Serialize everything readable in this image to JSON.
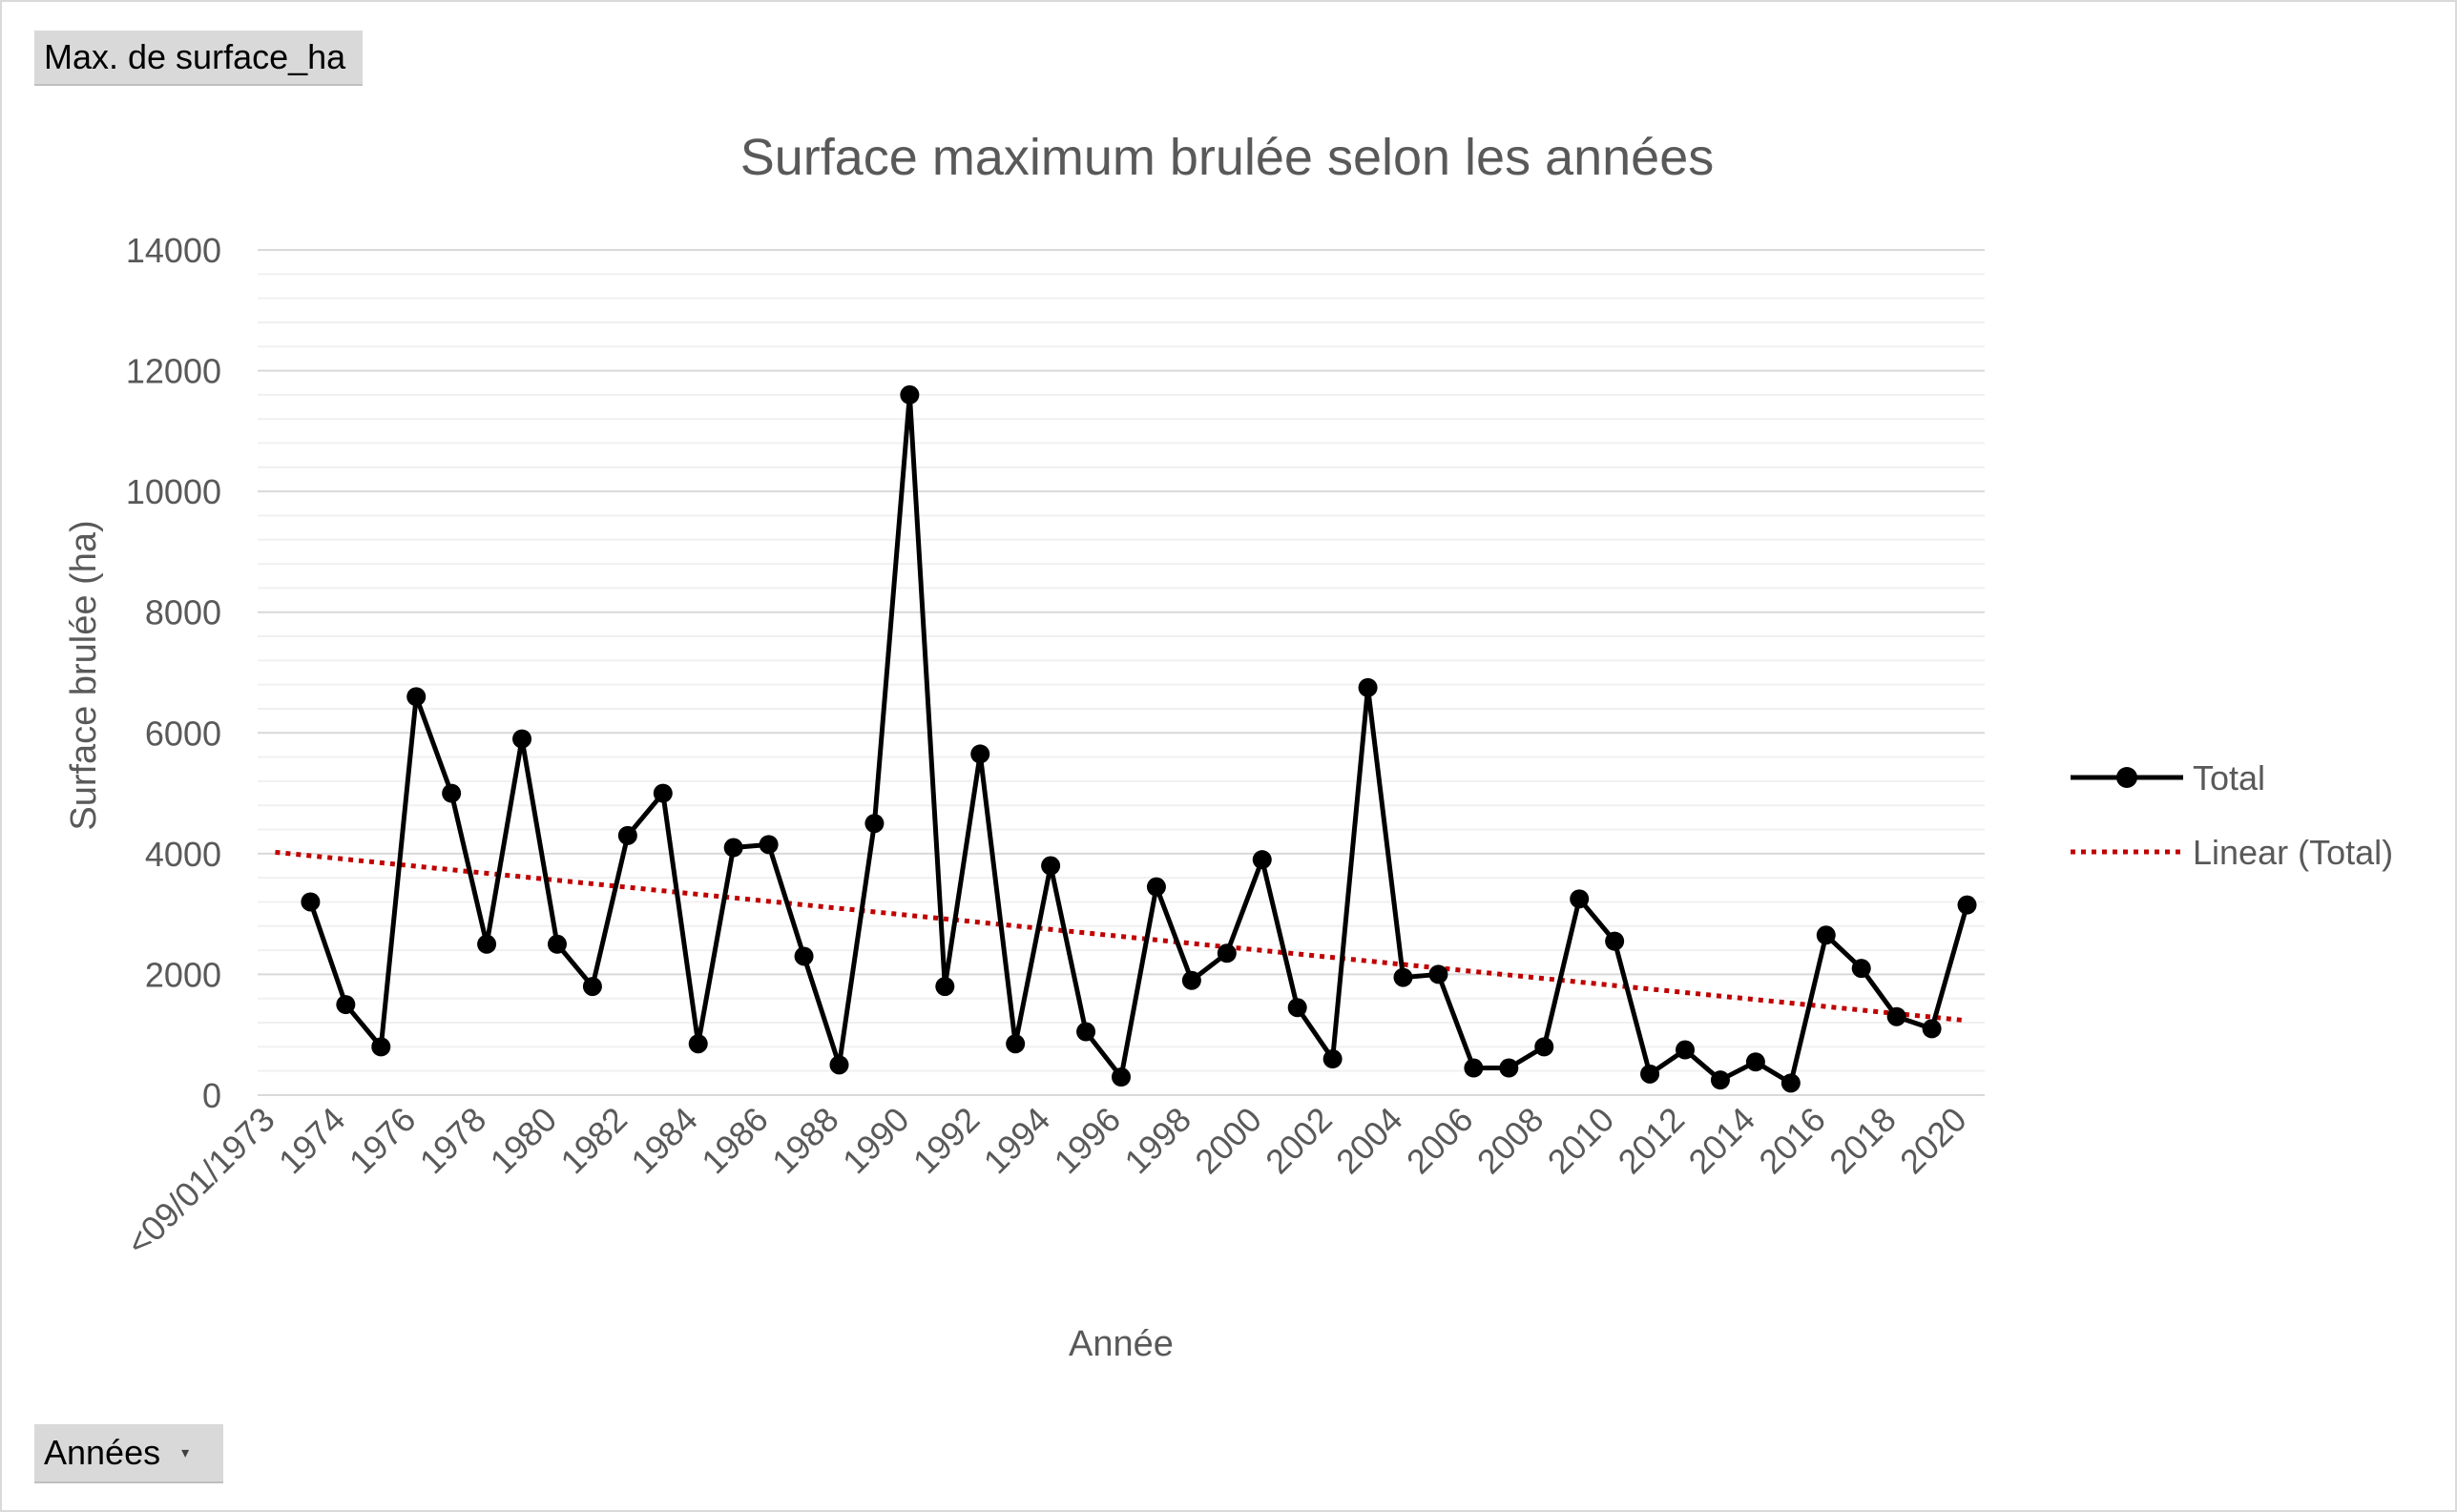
{
  "value_field_button": "Max. de surface_ha",
  "axis_field_button": "Années",
  "chart_data": {
    "type": "line",
    "title": "Surface maximum brulée selon les années",
    "xlabel": "Année",
    "ylabel": "Surface brulée (ha)",
    "ylim": [
      0,
      14000
    ],
    "y_ticks": [
      "0",
      "2000",
      "4000",
      "6000",
      "8000",
      "10000",
      "12000",
      "14000"
    ],
    "categories": [
      "<09/01/1973",
      "1973",
      "1974",
      "1975",
      "1976",
      "1977",
      "1978",
      "1979",
      "1980",
      "1981",
      "1982",
      "1983",
      "1984",
      "1985",
      "1986",
      "1987",
      "1988",
      "1989",
      "1990",
      "1991",
      "1992",
      "1993",
      "1994",
      "1995",
      "1996",
      "1997",
      "1998",
      "1999",
      "2000",
      "2001",
      "2002",
      "2003",
      "2004",
      "2005",
      "2006",
      "2007",
      "2008",
      "2009",
      "2010",
      "2011",
      "2012",
      "2013",
      "2014",
      "2015",
      "2016",
      "2017",
      "2018",
      "2019",
      "2020"
    ],
    "x_tick_labels": [
      "<09/01/1973",
      "1974",
      "1976",
      "1978",
      "1980",
      "1982",
      "1984",
      "1986",
      "1988",
      "1990",
      "1992",
      "1994",
      "1996",
      "1998",
      "2000",
      "2002",
      "2004",
      "2006",
      "2008",
      "2010",
      "2012",
      "2014",
      "2016",
      "2018",
      "2020"
    ],
    "series": [
      {
        "name": "Total",
        "color": "#000000",
        "values": [
          null,
          3200,
          1500,
          800,
          6600,
          5000,
          2500,
          5900,
          2500,
          1800,
          4300,
          5000,
          850,
          4100,
          4150,
          2300,
          500,
          4500,
          11600,
          1800,
          5650,
          850,
          3800,
          1050,
          300,
          3450,
          1900,
          2350,
          3900,
          1450,
          600,
          6750,
          1950,
          2000,
          450,
          450,
          800,
          3250,
          2550,
          350,
          750,
          250,
          550,
          200,
          2650,
          2100,
          1300,
          1100,
          3150
        ]
      }
    ],
    "trendline": {
      "name": "Linear (Total)",
      "type": "linear",
      "color": "#c00000",
      "of_series": "Total"
    },
    "legend_position": "right",
    "grid": true
  }
}
